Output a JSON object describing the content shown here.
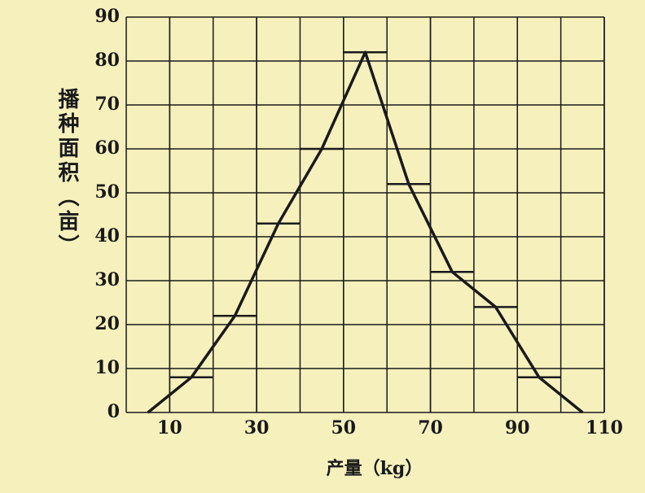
{
  "chart_data": {
    "type": "histogram",
    "x_label": "产量（kg）",
    "y_label": "播种面积（亩）",
    "bins": [
      10,
      20,
      30,
      40,
      50,
      60,
      70,
      80,
      90,
      100
    ],
    "counts": [
      8,
      22,
      43,
      60,
      82,
      52,
      32,
      24,
      8
    ],
    "polygon": {
      "x": [
        5,
        15,
        25,
        35,
        45,
        55,
        65,
        75,
        85,
        95,
        105
      ],
      "values": [
        0,
        8,
        22,
        43,
        60,
        82,
        52,
        32,
        24,
        8,
        0
      ]
    },
    "color": "#1a1a1a",
    "xlim": [
      0,
      110
    ],
    "ylim": [
      0,
      90
    ],
    "xticks": [
      10,
      30,
      50,
      70,
      90,
      110
    ],
    "yticks": [
      0,
      10,
      20,
      30,
      40,
      50,
      60,
      70,
      80,
      90
    ],
    "grid": true
  }
}
